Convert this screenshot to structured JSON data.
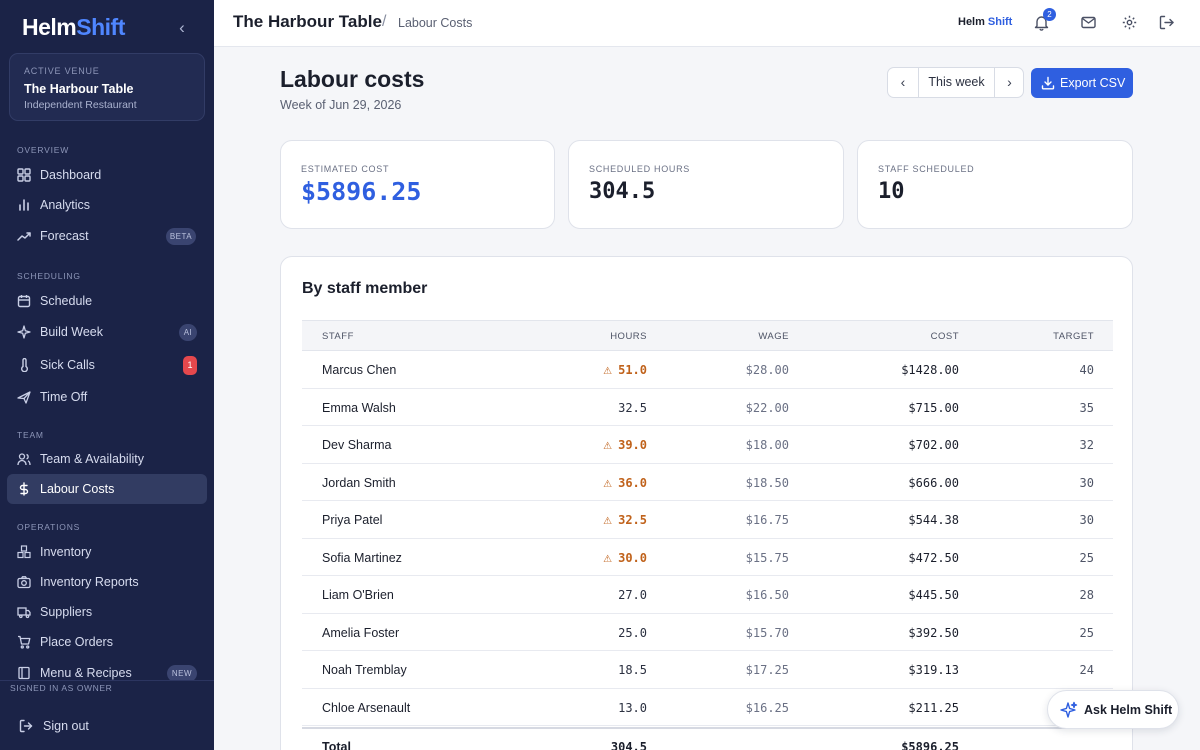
{
  "sidebar": {
    "brand_a": "Helm",
    "brand_b": "Shift",
    "collapse_icon": "‹",
    "venue": {
      "caption": "ACTIVE VENUE",
      "name": "The Harbour Table",
      "type": "Independent Restaurant"
    },
    "sections": [
      "OVERVIEW",
      "SCHEDULING",
      "TEAM",
      "OPERATIONS"
    ],
    "items": [
      {
        "label": "Dashboard",
        "icon": "grid-icon"
      },
      {
        "label": "Analytics",
        "icon": "bar-chart-icon"
      },
      {
        "label": "Forecast",
        "icon": "trend-icon",
        "badge": "BETA"
      },
      {
        "label": "Schedule",
        "icon": "calendar-icon"
      },
      {
        "label": "Build Week",
        "icon": "sparkle-icon",
        "badge": "AI"
      },
      {
        "label": "Sick Calls",
        "icon": "thermometer-icon",
        "count": "1"
      },
      {
        "label": "Time Off",
        "icon": "plane-icon"
      },
      {
        "label": "Team & Availability",
        "icon": "users-icon"
      },
      {
        "label": "Labour Costs",
        "icon": "dollar-icon",
        "active": true
      },
      {
        "label": "Inventory",
        "icon": "boxes-icon"
      },
      {
        "label": "Inventory Reports",
        "icon": "camera-icon"
      },
      {
        "label": "Suppliers",
        "icon": "truck-icon"
      },
      {
        "label": "Place Orders",
        "icon": "cart-icon"
      },
      {
        "label": "Menu & Recipes",
        "icon": "book-icon",
        "badge": "NEW"
      }
    ],
    "signed_in": "SIGNED IN AS OWNER",
    "sign_out": "Sign out"
  },
  "topbar": {
    "title": "The Harbour Table",
    "separator": "/",
    "crumb": "Labour Costs",
    "logo_a": "Helm",
    "logo_b": "Shift",
    "notifications": "2"
  },
  "page": {
    "title": "Labour costs",
    "subtitle": "Week of Jun 29, 2026",
    "week_label": "This week",
    "export_label": "Export CSV"
  },
  "stats": [
    {
      "caption": "ESTIMATED COST",
      "value": "$5896.25"
    },
    {
      "caption": "SCHEDULED HOURS",
      "value": "304.5"
    },
    {
      "caption": "STAFF SCHEDULED",
      "value": "10"
    }
  ],
  "table": {
    "title": "By staff member",
    "headers": [
      "STAFF",
      "HOURS",
      "WAGE",
      "COST",
      "TARGET"
    ],
    "rows": [
      {
        "staff": "Marcus Chen",
        "hours": "51.0",
        "over": true,
        "wage": "$28.00",
        "cost": "$1428.00",
        "target": "40"
      },
      {
        "staff": "Emma Walsh",
        "hours": "32.5",
        "over": false,
        "wage": "$22.00",
        "cost": "$715.00",
        "target": "35"
      },
      {
        "staff": "Dev Sharma",
        "hours": "39.0",
        "over": true,
        "wage": "$18.00",
        "cost": "$702.00",
        "target": "32"
      },
      {
        "staff": "Jordan Smith",
        "hours": "36.0",
        "over": true,
        "wage": "$18.50",
        "cost": "$666.00",
        "target": "30"
      },
      {
        "staff": "Priya Patel",
        "hours": "32.5",
        "over": true,
        "wage": "$16.75",
        "cost": "$544.38",
        "target": "30"
      },
      {
        "staff": "Sofia Martinez",
        "hours": "30.0",
        "over": true,
        "wage": "$15.75",
        "cost": "$472.50",
        "target": "25"
      },
      {
        "staff": "Liam O'Brien",
        "hours": "27.0",
        "over": false,
        "wage": "$16.50",
        "cost": "$445.50",
        "target": "28"
      },
      {
        "staff": "Amelia Foster",
        "hours": "25.0",
        "over": false,
        "wage": "$15.70",
        "cost": "$392.50",
        "target": "25"
      },
      {
        "staff": "Noah Tremblay",
        "hours": "18.5",
        "over": false,
        "wage": "$17.25",
        "cost": "$319.13",
        "target": "24"
      },
      {
        "staff": "Chloe Arsenault",
        "hours": "13.0",
        "over": false,
        "wage": "$16.25",
        "cost": "$211.25",
        "target": ""
      }
    ],
    "total": {
      "label": "Total",
      "hours": "304.5",
      "cost": "$5896.25"
    },
    "warn_icon": "⚠"
  },
  "assistant": {
    "label": "Ask Helm Shift",
    "icon": "sparkle-icon"
  },
  "colors": {
    "sidebar": "#1b2347",
    "accent": "#2f5fe0",
    "warning": "#c0621b",
    "alert": "#e5484d"
  }
}
